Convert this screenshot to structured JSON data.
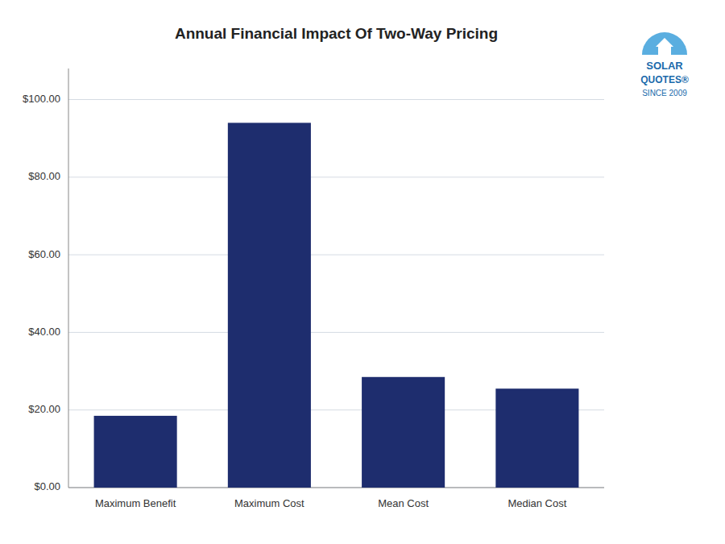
{
  "chart_data": {
    "type": "bar",
    "title": "Annual Financial Impact Of Two-Way Pricing",
    "categories": [
      "Maximum Benefit",
      "Maximum Cost",
      "Mean Cost",
      "Median Cost"
    ],
    "values": [
      18.5,
      94.0,
      28.5,
      25.5
    ],
    "color": "#1e2d6e",
    "ylim": [
      0,
      108
    ],
    "yticks": [
      {
        "value": 0,
        "label": "$0.00"
      },
      {
        "value": 20,
        "label": "$20.00"
      },
      {
        "value": 40,
        "label": "$40.00"
      },
      {
        "value": 60,
        "label": "$60.00"
      },
      {
        "value": 80,
        "label": "$80.00"
      },
      {
        "value": 100,
        "label": "$100.00"
      }
    ],
    "grid": true,
    "annotations": [
      "SOLAR",
      "QUOTES®",
      "SINCE 2009"
    ]
  }
}
